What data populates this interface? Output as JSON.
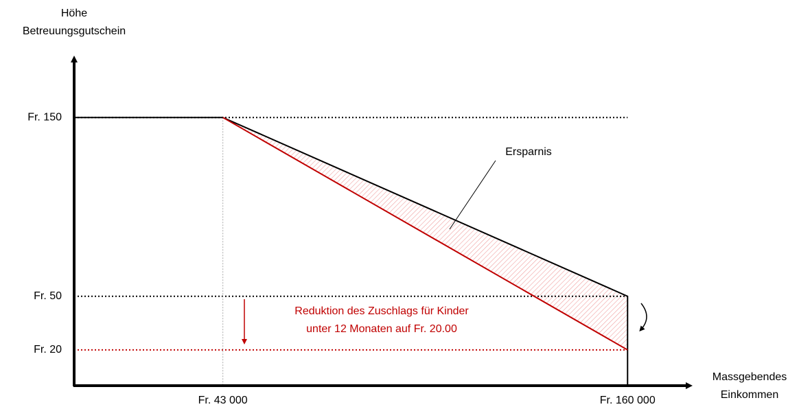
{
  "chart_data": {
    "type": "line",
    "y_label": [
      "Höhe",
      "Betreuungsgutschein"
    ],
    "x_label": [
      "Massgebendes",
      "Einkommen"
    ],
    "annotations": [
      "Ersparnis",
      "Reduktion des Zuschlags für Kinder",
      "unter 12 Monaten auf Fr. 20.00"
    ],
    "series": [
      {
        "color": "#000000",
        "x": [
          0,
          43000,
          160000,
          160000
        ],
        "values": [
          150,
          150,
          50,
          0
        ]
      },
      {
        "color": "#c00000",
        "x": [
          43000,
          160000
        ],
        "values": [
          150,
          20
        ]
      }
    ],
    "xlim": [
      0,
      179000
    ],
    "ylim": [
      0,
      185
    ],
    "xticks": [
      {
        "value": 43000,
        "label": "Fr. 43 000"
      },
      {
        "value": 160000,
        "label": "Fr. 160 000"
      }
    ],
    "yticks": [
      {
        "value": 150,
        "label": "Fr. 150"
      },
      {
        "value": 50,
        "label": "Fr. 50"
      },
      {
        "value": 20,
        "label": "Fr. 20"
      }
    ],
    "grid": false
  }
}
